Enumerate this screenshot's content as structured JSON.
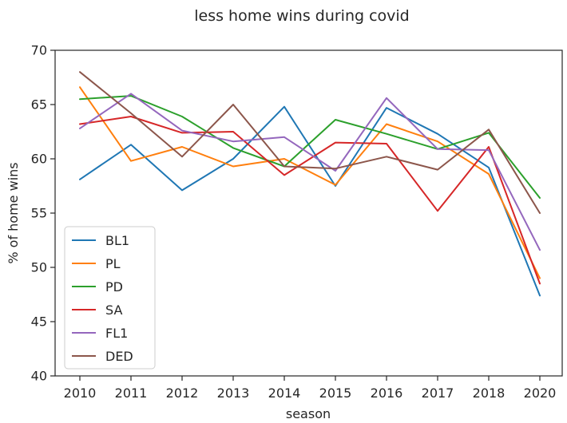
{
  "chart_data": {
    "type": "line",
    "title": "less home wins during covid",
    "xlabel": "season",
    "ylabel": "% of home wins",
    "categories": [
      "2010",
      "2011",
      "2012",
      "2013",
      "2014",
      "2015",
      "2016",
      "2017",
      "2018",
      "2020"
    ],
    "ylim": [
      40,
      70
    ],
    "yticks": [
      40,
      45,
      50,
      55,
      60,
      65,
      70
    ],
    "grid": false,
    "legend_position": "lower-left",
    "series": [
      {
        "name": "BL1",
        "color": "#1f77b4",
        "values": [
          58.1,
          61.3,
          57.1,
          60.0,
          64.8,
          57.5,
          64.7,
          62.3,
          59.2,
          47.4
        ]
      },
      {
        "name": "PL",
        "color": "#ff7f0e",
        "values": [
          66.6,
          59.8,
          61.1,
          59.3,
          60.0,
          57.6,
          63.2,
          61.6,
          58.6,
          49.0
        ]
      },
      {
        "name": "PD",
        "color": "#2ca02c",
        "values": [
          65.5,
          65.8,
          63.9,
          61.0,
          59.3,
          63.6,
          62.3,
          60.9,
          62.4,
          56.4
        ]
      },
      {
        "name": "SA",
        "color": "#d62728",
        "values": [
          63.2,
          63.9,
          62.4,
          62.5,
          58.5,
          61.5,
          61.4,
          55.2,
          61.1,
          48.5
        ]
      },
      {
        "name": "FL1",
        "color": "#9467bd",
        "values": [
          62.8,
          66.0,
          62.6,
          61.6,
          62.0,
          58.9,
          65.6,
          60.9,
          60.8,
          51.6
        ]
      },
      {
        "name": "DED",
        "color": "#8c564b",
        "values": [
          68.0,
          64.2,
          60.2,
          65.0,
          59.3,
          59.1,
          60.2,
          59.0,
          62.7,
          55.0
        ]
      }
    ]
  }
}
